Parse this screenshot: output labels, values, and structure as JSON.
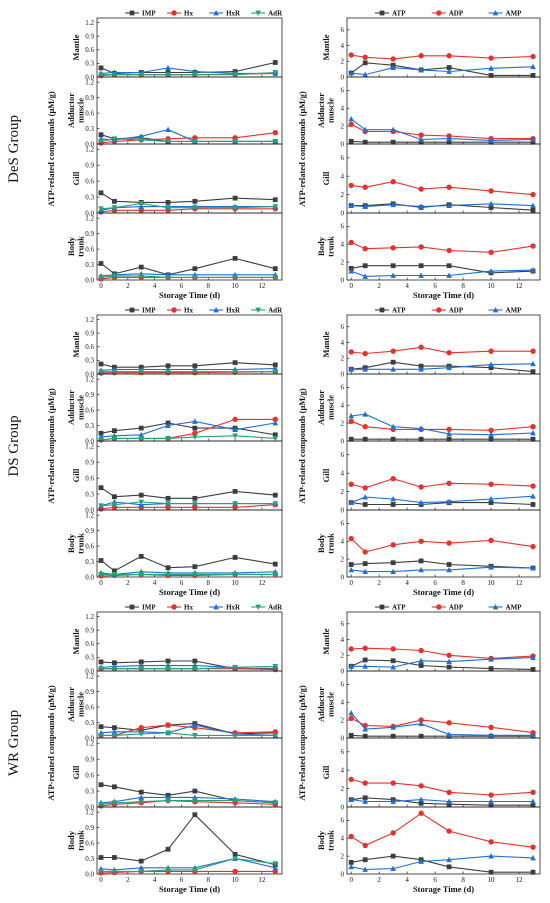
{
  "figure": {
    "groups": [
      "DeS Group",
      "DS Group",
      "WR Group"
    ],
    "left_ylabel": "ATP-related compounds (μM/g)",
    "right_ylabel": "ATP-related compounds (μM/g)",
    "xlabel": "Storage Time (d)",
    "tissues": [
      "Mantle",
      "Adductor muscle",
      "Gill",
      "Body trunk"
    ]
  },
  "chart_data": {
    "type": "line",
    "x": [
      0,
      1,
      3,
      5,
      7,
      10,
      13
    ],
    "xticks": [
      0,
      2,
      4,
      6,
      8,
      10,
      12
    ],
    "xlim": [
      -0.3,
      13.5
    ],
    "left_yticks": [
      "0.0",
      "0.3",
      "0.6",
      "0.9",
      "1.2"
    ],
    "left_ylim": [
      0,
      1.3
    ],
    "right_yticks": [
      "0",
      "2",
      "4",
      "6"
    ],
    "right_ylim": [
      0,
      7.5
    ],
    "left_series": [
      {
        "name": "IMP",
        "color": "#3d3d3d",
        "marker": "square"
      },
      {
        "name": "Hx",
        "color": "#e8312b",
        "marker": "circle"
      },
      {
        "name": "HxR",
        "color": "#1d6ed8",
        "marker": "triangle-up"
      },
      {
        "name": "AdR",
        "color": "#1fa57a",
        "marker": "triangle-down"
      }
    ],
    "right_series": [
      {
        "name": "ATP",
        "color": "#3d3d3d",
        "marker": "square"
      },
      {
        "name": "ADP",
        "color": "#e8312b",
        "marker": "circle"
      },
      {
        "name": "AMP",
        "color": "#1d6ed8",
        "marker": "triangle-up"
      }
    ],
    "groups": [
      {
        "name": "DeS Group",
        "left": [
          {
            "tissue": "Mantle",
            "values": [
              [
                0.2,
                0.08,
                0.1,
                0.1,
                0.1,
                0.12,
                0.32
              ],
              [
                0.03,
                0.05,
                0.05,
                0.05,
                0.05,
                0.06,
                0.08
              ],
              [
                0.08,
                0.1,
                0.1,
                0.2,
                0.12,
                0.08,
                0.08
              ],
              [
                0.05,
                0.05,
                0.05,
                0.05,
                0.05,
                0.05,
                0.1
              ]
            ]
          },
          {
            "tissue": "Adductor muscle",
            "values": [
              [
                0.18,
                0.1,
                0.12,
                0.05,
                0.05,
                0.05,
                0.05
              ],
              [
                0.02,
                0.05,
                0.08,
                0.1,
                0.12,
                0.12,
                0.22
              ],
              [
                0.1,
                0.08,
                0.15,
                0.28,
                0.05,
                0.05,
                0.05
              ],
              [
                0.05,
                0.1,
                0.08,
                0.05,
                0.05,
                0.05,
                0.05
              ]
            ]
          },
          {
            "tissue": "Gill",
            "values": [
              [
                0.38,
                0.22,
                0.2,
                0.2,
                0.22,
                0.28,
                0.25
              ],
              [
                0.02,
                0.05,
                0.05,
                0.05,
                0.08,
                0.08,
                0.08
              ],
              [
                0.05,
                0.1,
                0.12,
                0.12,
                0.12,
                0.12,
                0.12
              ],
              [
                0.08,
                0.1,
                0.18,
                0.1,
                0.1,
                0.1,
                0.12
              ]
            ]
          },
          {
            "tissue": "Body trunk",
            "values": [
              [
                0.32,
                0.12,
                0.25,
                0.1,
                0.22,
                0.42,
                0.22
              ],
              [
                0.02,
                0.05,
                0.05,
                0.05,
                0.05,
                0.05,
                0.05
              ],
              [
                0.08,
                0.1,
                0.12,
                0.1,
                0.1,
                0.1,
                0.1
              ],
              [
                0.05,
                0.08,
                0.08,
                0.05,
                0.05,
                0.05,
                0.05
              ]
            ]
          }
        ],
        "right": [
          {
            "tissue": "Mantle",
            "values": [
              [
                0.5,
                1.8,
                1.5,
                0.9,
                1.2,
                0.2,
                0.2
              ],
              [
                2.8,
                2.5,
                2.3,
                2.7,
                2.7,
                2.4,
                2.6
              ],
              [
                0.5,
                0.3,
                1.2,
                0.9,
                0.7,
                1.1,
                1.3
              ]
            ]
          },
          {
            "tissue": "Adductor muscle",
            "values": [
              [
                0.3,
                0.2,
                0.2,
                0.2,
                0.2,
                0.2,
                0.2
              ],
              [
                2.2,
                1.4,
                1.4,
                1.0,
                0.9,
                0.6,
                0.6
              ],
              [
                2.8,
                1.6,
                1.6,
                0.5,
                0.6,
                0.4,
                0.5
              ]
            ]
          },
          {
            "tissue": "Gill",
            "values": [
              [
                0.8,
                0.8,
                1.0,
                0.6,
                0.9,
                0.6,
                0.3
              ],
              [
                3.0,
                2.8,
                3.4,
                2.6,
                2.8,
                2.4,
                2.0
              ],
              [
                0.8,
                0.7,
                0.9,
                0.7,
                0.8,
                1.0,
                0.8
              ]
            ]
          },
          {
            "tissue": "Body trunk",
            "values": [
              [
                1.3,
                1.6,
                1.6,
                1.6,
                1.6,
                0.8,
                1.0
              ],
              [
                4.2,
                3.5,
                3.6,
                3.7,
                3.3,
                3.1,
                3.8
              ],
              [
                1.0,
                0.4,
                0.5,
                0.5,
                0.5,
                1.0,
                1.1
              ]
            ]
          }
        ]
      },
      {
        "name": "DS Group",
        "left": [
          {
            "tissue": "Mantle",
            "values": [
              [
                0.22,
                0.15,
                0.15,
                0.18,
                0.18,
                0.25,
                0.2
              ],
              [
                0.02,
                0.03,
                0.03,
                0.03,
                0.03,
                0.04,
                0.05
              ],
              [
                0.08,
                0.1,
                0.1,
                0.1,
                0.1,
                0.1,
                0.12
              ],
              [
                0.05,
                0.05,
                0.05,
                0.05,
                0.05,
                0.05,
                0.05
              ]
            ]
          },
          {
            "tissue": "Adductor muscle",
            "values": [
              [
                0.15,
                0.2,
                0.25,
                0.35,
                0.25,
                0.25,
                0.12
              ],
              [
                0.02,
                0.05,
                0.05,
                0.05,
                0.15,
                0.42,
                0.42
              ],
              [
                0.08,
                0.1,
                0.12,
                0.3,
                0.38,
                0.22,
                0.35
              ],
              [
                0.02,
                0.05,
                0.05,
                0.05,
                0.08,
                0.1,
                0.05
              ]
            ]
          },
          {
            "tissue": "Gill",
            "values": [
              [
                0.42,
                0.25,
                0.28,
                0.22,
                0.22,
                0.35,
                0.28
              ],
              [
                0.02,
                0.05,
                0.05,
                0.05,
                0.05,
                0.05,
                0.1
              ],
              [
                0.08,
                0.15,
                0.1,
                0.12,
                0.12,
                0.12,
                0.12
              ],
              [
                0.08,
                0.1,
                0.15,
                0.12,
                0.12,
                0.12,
                0.12
              ]
            ]
          },
          {
            "tissue": "Body trunk",
            "values": [
              [
                0.32,
                0.12,
                0.4,
                0.18,
                0.2,
                0.38,
                0.25
              ],
              [
                0.02,
                0.03,
                0.05,
                0.03,
                0.03,
                0.05,
                0.05
              ],
              [
                0.08,
                0.05,
                0.1,
                0.08,
                0.08,
                0.08,
                0.1
              ],
              [
                0.05,
                0.05,
                0.05,
                0.05,
                0.05,
                0.05,
                0.05
              ]
            ]
          }
        ],
        "right": [
          {
            "tissue": "Mantle",
            "values": [
              [
                0.6,
                0.8,
                1.5,
                1.0,
                1.0,
                0.8,
                0.3
              ],
              [
                2.8,
                2.6,
                2.9,
                3.4,
                2.7,
                2.9,
                2.9
              ],
              [
                0.6,
                0.6,
                0.6,
                0.6,
                0.8,
                1.2,
                1.3
              ]
            ]
          },
          {
            "tissue": "Adductor muscle",
            "values": [
              [
                0.2,
                0.2,
                0.2,
                0.2,
                0.2,
                0.2,
                0.2
              ],
              [
                2.2,
                1.6,
                1.3,
                1.3,
                1.3,
                1.2,
                1.6
              ],
              [
                2.8,
                3.0,
                1.6,
                1.4,
                0.8,
                0.7,
                0.9
              ]
            ]
          },
          {
            "tissue": "Gill",
            "values": [
              [
                0.8,
                0.6,
                0.6,
                0.6,
                0.8,
                0.8,
                0.6
              ],
              [
                2.8,
                2.4,
                3.4,
                2.5,
                2.9,
                2.8,
                2.6
              ],
              [
                0.8,
                1.4,
                1.2,
                0.8,
                0.9,
                1.2,
                1.5
              ]
            ]
          },
          {
            "tissue": "Body trunk",
            "values": [
              [
                1.4,
                1.5,
                1.6,
                1.8,
                1.4,
                1.2,
                1.0
              ],
              [
                4.3,
                2.8,
                3.6,
                4.0,
                3.8,
                4.1,
                3.4
              ],
              [
                0.8,
                0.6,
                0.6,
                0.8,
                0.8,
                1.1,
                1.0
              ]
            ]
          }
        ]
      },
      {
        "name": "WR Group",
        "left": [
          {
            "tissue": "Mantle",
            "values": [
              [
                0.2,
                0.18,
                0.2,
                0.22,
                0.22,
                0.05,
                0.05
              ],
              [
                0.05,
                0.05,
                0.05,
                0.05,
                0.05,
                0.05,
                0.03
              ],
              [
                0.08,
                0.1,
                0.12,
                0.12,
                0.12,
                0.08,
                0.1
              ],
              [
                0.05,
                0.05,
                0.05,
                0.05,
                0.05,
                0.08,
                0.1
              ]
            ]
          },
          {
            "tissue": "Adductor muscle",
            "values": [
              [
                0.22,
                0.2,
                0.15,
                0.25,
                0.28,
                0.08,
                0.1
              ],
              [
                0.05,
                0.05,
                0.2,
                0.25,
                0.2,
                0.1,
                0.12
              ],
              [
                0.1,
                0.12,
                0.12,
                0.1,
                0.25,
                0.08,
                0.05
              ],
              [
                0.05,
                0.05,
                0.08,
                0.1,
                0.05,
                0.05,
                0.05
              ]
            ]
          },
          {
            "tissue": "Gill",
            "values": [
              [
                0.42,
                0.38,
                0.28,
                0.22,
                0.3,
                0.12,
                0.08
              ],
              [
                0.02,
                0.05,
                0.08,
                0.12,
                0.1,
                0.08,
                0.05
              ],
              [
                0.08,
                0.1,
                0.18,
                0.18,
                0.18,
                0.15,
                0.1
              ],
              [
                0.05,
                0.08,
                0.1,
                0.12,
                0.12,
                0.12,
                0.08
              ]
            ]
          },
          {
            "tissue": "Body trunk",
            "values": [
              [
                0.32,
                0.32,
                0.25,
                0.48,
                1.15,
                0.38,
                0.18
              ],
              [
                0.02,
                0.03,
                0.05,
                0.05,
                0.05,
                0.05,
                0.05
              ],
              [
                0.1,
                0.08,
                0.12,
                0.12,
                0.12,
                0.3,
                0.12
              ],
              [
                0.05,
                0.05,
                0.05,
                0.08,
                0.08,
                0.3,
                0.2
              ]
            ]
          }
        ],
        "right": [
          {
            "tissue": "Mantle",
            "values": [
              [
                0.6,
                1.4,
                1.3,
                0.7,
                0.5,
                0.3,
                0.2
              ],
              [
                2.8,
                2.9,
                2.8,
                2.6,
                2.0,
                1.6,
                1.9
              ],
              [
                0.6,
                0.6,
                0.5,
                1.3,
                1.2,
                1.5,
                1.7
              ]
            ]
          },
          {
            "tissue": "Adductor muscle",
            "values": [
              [
                0.3,
                0.2,
                0.2,
                0.2,
                0.2,
                0.2,
                0.2
              ],
              [
                2.2,
                1.4,
                1.3,
                2.0,
                1.7,
                1.2,
                0.6
              ],
              [
                2.8,
                1.0,
                1.2,
                1.6,
                0.4,
                0.3,
                0.3
              ]
            ]
          },
          {
            "tissue": "Gill",
            "values": [
              [
                0.8,
                1.0,
                0.8,
                0.4,
                0.3,
                0.2,
                0.2
              ],
              [
                3.0,
                2.6,
                2.6,
                2.3,
                1.6,
                1.3,
                1.6
              ],
              [
                0.8,
                0.6,
                0.6,
                0.8,
                0.6,
                0.6,
                0.6
              ]
            ]
          },
          {
            "tissue": "Body trunk",
            "values": [
              [
                1.3,
                1.6,
                2.0,
                1.6,
                0.8,
                0.2,
                0.2
              ],
              [
                4.2,
                3.2,
                4.6,
                6.8,
                4.8,
                3.6,
                3.0
              ],
              [
                0.8,
                0.5,
                0.6,
                1.4,
                1.6,
                2.0,
                1.8
              ]
            ]
          }
        ]
      }
    ]
  }
}
